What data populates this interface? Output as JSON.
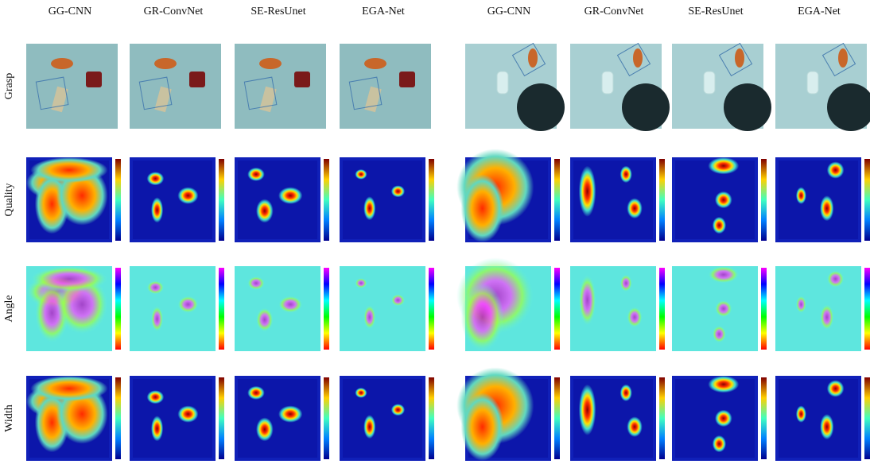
{
  "columns": [
    "GG-CNN",
    "GR-ConvNet",
    "SE-ResUnet",
    "EGA-Net",
    "GG-CNN",
    "GR-ConvNet",
    "SE-ResUnet",
    "EGA-Net"
  ],
  "rows": [
    "Grasp",
    "Quality",
    "Angle",
    "Width"
  ]
}
